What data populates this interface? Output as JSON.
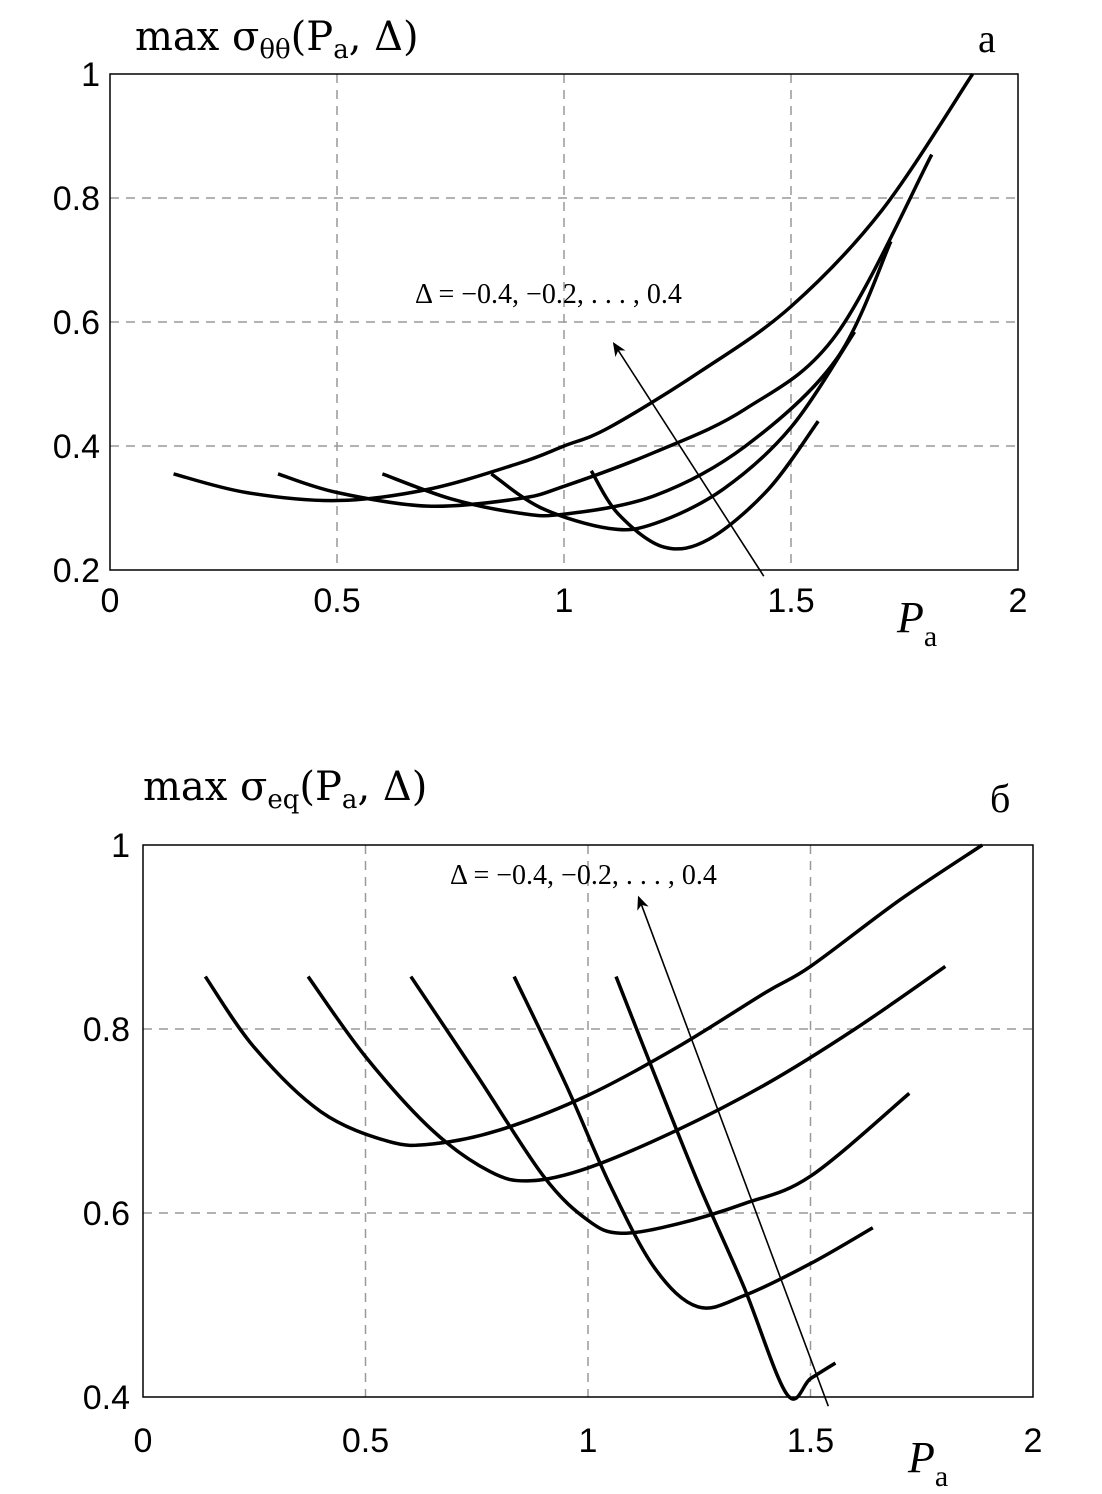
{
  "chart_data": [
    {
      "type": "line",
      "panel_label": "a",
      "title": {
        "main": "max σ",
        "sub": "θθ",
        "args_open": "(P",
        "args_sub": "a",
        "args_rest": ", Δ)"
      },
      "xlabel": {
        "main": "P",
        "sub": "a"
      },
      "xlim": [
        0,
        2
      ],
      "ylim": [
        0.2,
        1
      ],
      "xticks": [
        "0",
        "0.5",
        "1",
        "1.5",
        "2"
      ],
      "yticks": [
        "0.2",
        "0.4",
        "0.6",
        "0.8",
        "1"
      ],
      "grid": true,
      "annotation": "Δ = −0.4, −0.2, . . . , 0.4",
      "arrow": {
        "from": [
          1.44,
          0.19
        ],
        "to": [
          1.11,
          0.565
        ]
      },
      "series": [
        {
          "points": [
            [
              0.14,
              0.355
            ],
            [
              0.3,
              0.325
            ],
            [
              0.5,
              0.312
            ],
            [
              0.7,
              0.33
            ],
            [
              0.9,
              0.372
            ],
            [
              1.0,
              0.4
            ],
            [
              1.1,
              0.43
            ],
            [
              1.3,
              0.52
            ],
            [
              1.5,
              0.625
            ],
            [
              1.7,
              0.78
            ],
            [
              1.9,
              1.0
            ]
          ]
        },
        {
          "points": [
            [
              0.37,
              0.355
            ],
            [
              0.5,
              0.325
            ],
            [
              0.7,
              0.303
            ],
            [
              0.9,
              0.315
            ],
            [
              1.0,
              0.335
            ],
            [
              1.2,
              0.39
            ],
            [
              1.4,
              0.46
            ],
            [
              1.6,
              0.58
            ],
            [
              1.81,
              0.87
            ]
          ]
        },
        {
          "points": [
            [
              0.6,
              0.355
            ],
            [
              0.75,
              0.315
            ],
            [
              0.9,
              0.292
            ],
            [
              1.0,
              0.29
            ],
            [
              1.2,
              0.32
            ],
            [
              1.4,
              0.4
            ],
            [
              1.6,
              0.54
            ],
            [
              1.72,
              0.73
            ]
          ]
        },
        {
          "points": [
            [
              0.84,
              0.355
            ],
            [
              0.95,
              0.3
            ],
            [
              1.1,
              0.267
            ],
            [
              1.2,
              0.275
            ],
            [
              1.35,
              0.33
            ],
            [
              1.5,
              0.43
            ],
            [
              1.64,
              0.584
            ]
          ]
        },
        {
          "points": [
            [
              1.06,
              0.36
            ],
            [
              1.12,
              0.29
            ],
            [
              1.22,
              0.237
            ],
            [
              1.32,
              0.25
            ],
            [
              1.45,
              0.33
            ],
            [
              1.56,
              0.44
            ]
          ]
        }
      ]
    },
    {
      "type": "line",
      "panel_label": "б",
      "title": {
        "main": "max σ",
        "sub": "eq",
        "args_open": "(P",
        "args_sub": "a",
        "args_rest": ", Δ)"
      },
      "xlabel": {
        "main": "P",
        "sub": "a"
      },
      "xlim": [
        0,
        2
      ],
      "ylim": [
        0.4,
        1
      ],
      "xticks": [
        "0",
        "0.5",
        "1",
        "1.5",
        "2"
      ],
      "yticks": [
        "0.4",
        "0.6",
        "0.8",
        "1"
      ],
      "grid": true,
      "annotation": "Δ = −0.4, −0.2, . . . , 0.4",
      "arrow": {
        "from": [
          1.54,
          0.39
        ],
        "to": [
          1.114,
          0.943
        ]
      },
      "series": [
        {
          "points": [
            [
              0.14,
              0.857
            ],
            [
              0.25,
              0.78
            ],
            [
              0.4,
              0.71
            ],
            [
              0.55,
              0.678
            ],
            [
              0.65,
              0.675
            ],
            [
              0.8,
              0.69
            ],
            [
              1.0,
              0.728
            ],
            [
              1.2,
              0.78
            ],
            [
              1.4,
              0.84
            ],
            [
              1.5,
              0.868
            ],
            [
              1.7,
              0.94
            ],
            [
              1.886,
              1.0
            ]
          ]
        },
        {
          "points": [
            [
              0.371,
              0.857
            ],
            [
              0.5,
              0.77
            ],
            [
              0.65,
              0.69
            ],
            [
              0.78,
              0.645
            ],
            [
              0.87,
              0.635
            ],
            [
              1.0,
              0.649
            ],
            [
              1.2,
              0.69
            ],
            [
              1.4,
              0.74
            ],
            [
              1.6,
              0.8
            ],
            [
              1.803,
              0.868
            ]
          ]
        },
        {
          "points": [
            [
              0.602,
              0.857
            ],
            [
              0.75,
              0.75
            ],
            [
              0.9,
              0.64
            ],
            [
              1.0,
              0.592
            ],
            [
              1.074,
              0.578
            ],
            [
              1.2,
              0.588
            ],
            [
              1.35,
              0.61
            ],
            [
              1.5,
              0.64
            ],
            [
              1.722,
              0.73
            ]
          ]
        },
        {
          "points": [
            [
              0.834,
              0.857
            ],
            [
              0.95,
              0.74
            ],
            [
              1.05,
              0.63
            ],
            [
              1.15,
              0.54
            ],
            [
              1.247,
              0.498
            ],
            [
              1.35,
              0.51
            ],
            [
              1.5,
              0.545
            ],
            [
              1.64,
              0.584
            ]
          ]
        },
        {
          "points": [
            [
              1.063,
              0.857
            ],
            [
              1.15,
              0.75
            ],
            [
              1.25,
              0.63
            ],
            [
              1.35,
              0.52
            ],
            [
              1.447,
              0.403
            ],
            [
              1.5,
              0.42
            ],
            [
              1.556,
              0.437
            ]
          ]
        }
      ]
    }
  ]
}
